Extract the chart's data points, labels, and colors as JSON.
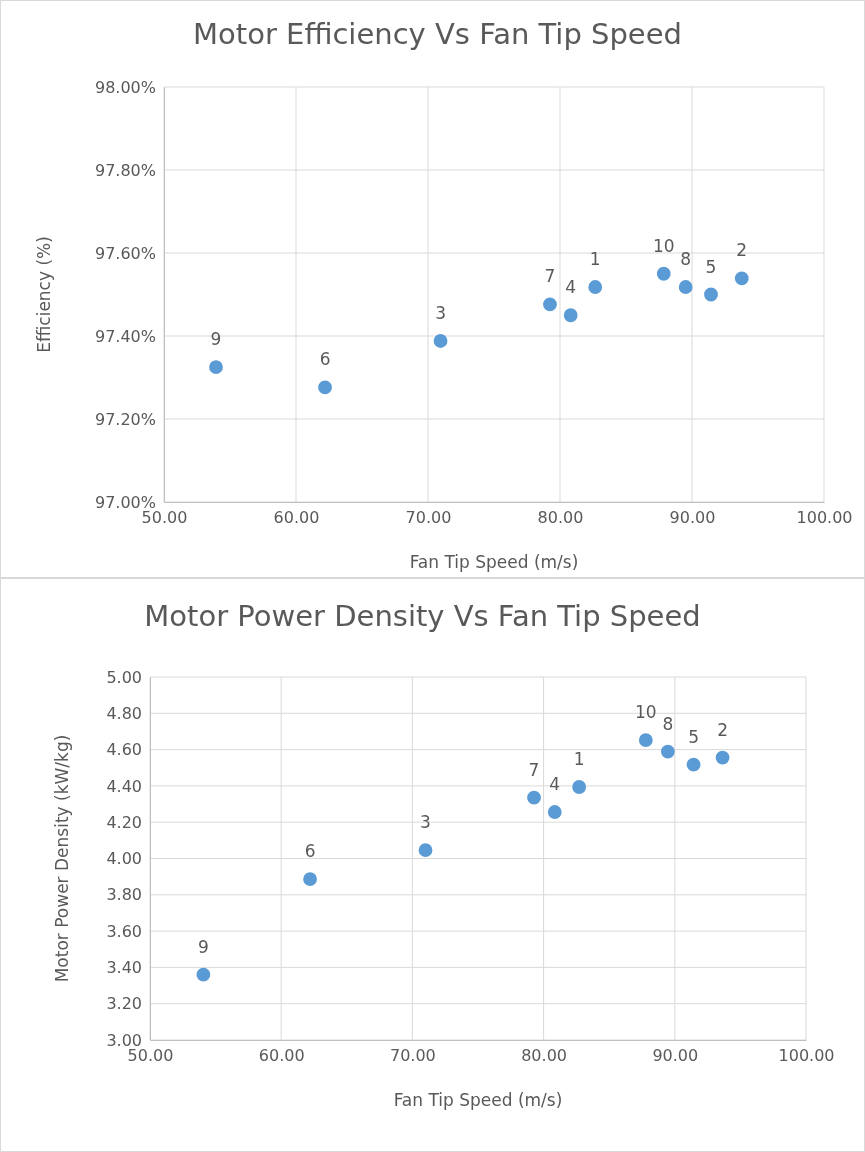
{
  "chart_data": [
    {
      "type": "scatter",
      "title": "Motor Efficiency Vs Fan Tip Speed",
      "xlabel": "Fan Tip Speed (m/s)",
      "ylabel": "Efficiency (%)",
      "series": [
        {
          "color": "#5b9bd5",
          "x": [
            82.67,
            93.77,
            70.95,
            80.81,
            91.44,
            62.2,
            79.24,
            89.52,
            53.94,
            87.86
          ],
          "values": [
            97.518,
            97.539,
            97.388,
            97.45,
            97.5,
            97.276,
            97.476,
            97.518,
            97.325,
            97.55
          ]
        }
      ],
      "xlim": [
        50,
        100
      ],
      "xticks": [
        {
          "value": 50,
          "label": "50.00"
        },
        {
          "value": 60,
          "label": "60.00"
        },
        {
          "value": 70,
          "label": "70.00"
        },
        {
          "value": 80,
          "label": "80.00"
        },
        {
          "value": 90,
          "label": "90.00"
        },
        {
          "value": 100,
          "label": "100.00"
        }
      ],
      "ylim": [
        97,
        98
      ],
      "yticks": [
        {
          "value": 97,
          "label": "97.00%"
        },
        {
          "value": 97.2,
          "label": "97.20%"
        },
        {
          "value": 97.4,
          "label": "97.40%"
        },
        {
          "value": 97.6,
          "label": "97.60%"
        },
        {
          "value": 97.8,
          "label": "97.80%"
        },
        {
          "value": 98,
          "label": "98.00%"
        }
      ],
      "grid": true,
      "marker": "circle",
      "annotations": [
        {
          "text": "1",
          "x": 82.67,
          "y": 97.518
        },
        {
          "text": "2",
          "x": 93.77,
          "y": 97.539
        },
        {
          "text": "3",
          "x": 70.95,
          "y": 97.388
        },
        {
          "text": "4",
          "x": 80.81,
          "y": 97.45
        },
        {
          "text": "5",
          "x": 91.44,
          "y": 97.5
        },
        {
          "text": "6",
          "x": 62.2,
          "y": 97.276
        },
        {
          "text": "7",
          "x": 79.24,
          "y": 97.476
        },
        {
          "text": "8",
          "x": 89.52,
          "y": 97.518
        },
        {
          "text": "9",
          "x": 53.94,
          "y": 97.325
        },
        {
          "text": "10",
          "x": 87.86,
          "y": 97.55
        }
      ]
    },
    {
      "type": "scatter",
      "title": "Motor Power Density Vs Fan Tip Speed",
      "xlabel": "Fan Tip Speed (m/s)",
      "ylabel": "Motor Power Density (kW/kg)",
      "series": [
        {
          "color": "#5b9bd5",
          "x": [
            82.71,
            93.64,
            71.0,
            80.85,
            91.43,
            62.2,
            79.27,
            89.47,
            54.07,
            87.79
          ],
          "values": [
            4.394,
            4.556,
            4.046,
            4.256,
            4.517,
            3.886,
            4.335,
            4.589,
            3.36,
            4.652
          ]
        }
      ],
      "xlim": [
        50,
        100
      ],
      "xticks": [
        {
          "value": 50,
          "label": "50.00"
        },
        {
          "value": 60,
          "label": "60.00"
        },
        {
          "value": 70,
          "label": "70.00"
        },
        {
          "value": 80,
          "label": "80.00"
        },
        {
          "value": 90,
          "label": "90.00"
        },
        {
          "value": 100,
          "label": "100.00"
        }
      ],
      "ylim": [
        3,
        5
      ],
      "yticks": [
        {
          "value": 3,
          "label": "3.00"
        },
        {
          "value": 3.2,
          "label": "3.20"
        },
        {
          "value": 3.4,
          "label": "3.40"
        },
        {
          "value": 3.6,
          "label": "3.60"
        },
        {
          "value": 3.8,
          "label": "3.80"
        },
        {
          "value": 4,
          "label": "4.00"
        },
        {
          "value": 4.2,
          "label": "4.20"
        },
        {
          "value": 4.4,
          "label": "4.40"
        },
        {
          "value": 4.6,
          "label": "4.60"
        },
        {
          "value": 4.8,
          "label": "4.80"
        },
        {
          "value": 5,
          "label": "5.00"
        }
      ],
      "grid": true,
      "marker": "circle",
      "annotations": [
        {
          "text": "1",
          "x": 82.71,
          "y": 4.394
        },
        {
          "text": "2",
          "x": 93.64,
          "y": 4.556
        },
        {
          "text": "3",
          "x": 71.0,
          "y": 4.046
        },
        {
          "text": "4",
          "x": 80.85,
          "y": 4.256
        },
        {
          "text": "5",
          "x": 91.43,
          "y": 4.517
        },
        {
          "text": "6",
          "x": 62.2,
          "y": 3.886
        },
        {
          "text": "7",
          "x": 79.27,
          "y": 4.335
        },
        {
          "text": "8",
          "x": 89.47,
          "y": 4.589
        },
        {
          "text": "9",
          "x": 54.07,
          "y": 3.36
        },
        {
          "text": "10",
          "x": 87.79,
          "y": 4.652
        }
      ]
    }
  ]
}
